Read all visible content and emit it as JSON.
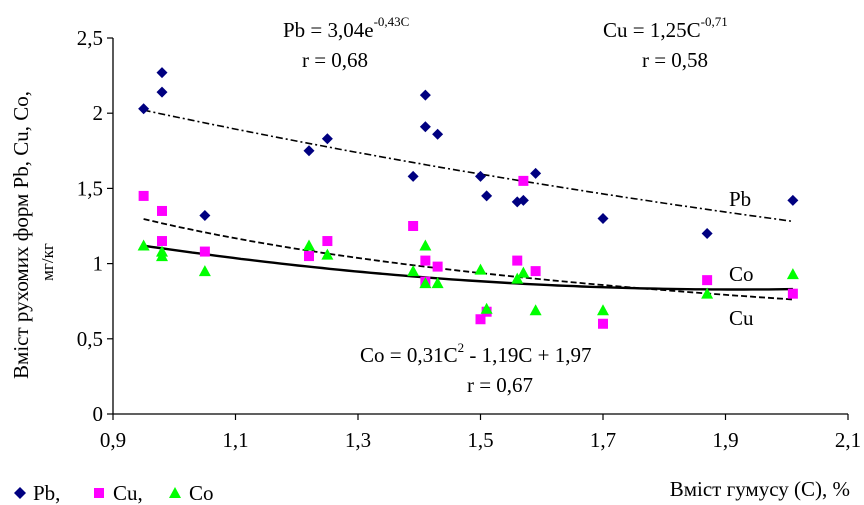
{
  "chart_data": {
    "type": "scatter",
    "xlabel": "Вміст гумусу (С), %",
    "ylabel_line1": "Вміст рухомих форм Pb, Cu, Co,",
    "ylabel_line2": "мг/кг",
    "xlim": [
      0.9,
      2.1
    ],
    "ylim": [
      0,
      2.5
    ],
    "x_ticks": [
      "0,9",
      "1,1",
      "1,3",
      "1,5",
      "1,7",
      "1,9",
      "2,1"
    ],
    "y_ticks": [
      "0",
      "0,5",
      "1",
      "1,5",
      "2",
      "2,5"
    ],
    "grid": false,
    "legend_position": "bottom-left",
    "legend": [
      "Pb,",
      "Cu,",
      "Co"
    ],
    "series": [
      {
        "name": "Pb",
        "marker": "diamond",
        "color": "#000080",
        "points": [
          [
            0.95,
            2.03
          ],
          [
            0.98,
            2.27
          ],
          [
            0.98,
            2.14
          ],
          [
            1.05,
            1.32
          ],
          [
            1.22,
            1.75
          ],
          [
            1.25,
            1.83
          ],
          [
            1.39,
            1.58
          ],
          [
            1.41,
            2.12
          ],
          [
            1.41,
            1.91
          ],
          [
            1.43,
            1.86
          ],
          [
            1.5,
            1.58
          ],
          [
            1.51,
            1.45
          ],
          [
            1.56,
            1.41
          ],
          [
            1.57,
            1.42
          ],
          [
            1.59,
            1.6
          ],
          [
            1.7,
            1.3
          ],
          [
            1.87,
            1.2
          ],
          [
            2.01,
            1.42
          ]
        ]
      },
      {
        "name": "Cu",
        "marker": "square",
        "color": "#ff00ff",
        "points": [
          [
            0.95,
            1.45
          ],
          [
            0.98,
            1.35
          ],
          [
            0.98,
            1.15
          ],
          [
            1.05,
            1.08
          ],
          [
            1.22,
            1.05
          ],
          [
            1.25,
            1.15
          ],
          [
            1.39,
            1.25
          ],
          [
            1.41,
            1.02
          ],
          [
            1.41,
            0.88
          ],
          [
            1.43,
            0.98
          ],
          [
            1.5,
            0.63
          ],
          [
            1.51,
            0.68
          ],
          [
            1.56,
            1.02
          ],
          [
            1.57,
            1.55
          ],
          [
            1.59,
            0.95
          ],
          [
            1.7,
            0.6
          ],
          [
            1.87,
            0.89
          ],
          [
            2.01,
            0.8
          ]
        ]
      },
      {
        "name": "Co",
        "marker": "triangle",
        "color": "#00ff00",
        "points": [
          [
            0.95,
            1.12
          ],
          [
            0.98,
            1.08
          ],
          [
            0.98,
            1.05
          ],
          [
            1.05,
            0.95
          ],
          [
            1.22,
            1.12
          ],
          [
            1.25,
            1.06
          ],
          [
            1.39,
            0.95
          ],
          [
            1.41,
            1.12
          ],
          [
            1.41,
            0.87
          ],
          [
            1.43,
            0.87
          ],
          [
            1.5,
            0.96
          ],
          [
            1.51,
            0.7
          ],
          [
            1.56,
            0.9
          ],
          [
            1.57,
            0.94
          ],
          [
            1.59,
            0.69
          ],
          [
            1.7,
            0.69
          ],
          [
            1.87,
            0.8
          ],
          [
            2.01,
            0.93
          ]
        ]
      }
    ],
    "trendlines": [
      {
        "series": "Pb",
        "label": "Pb",
        "type": "exp",
        "a": 3.04,
        "b": -0.43,
        "x_range": [
          0.95,
          2.01
        ],
        "style": "dash-dot"
      },
      {
        "series": "Cu",
        "label": "Cu",
        "type": "power",
        "a": 1.25,
        "b": -0.71,
        "x_range": [
          0.95,
          2.01
        ],
        "style": "dashed"
      },
      {
        "series": "Co",
        "label": "Co",
        "type": "poly2",
        "c2": 0.31,
        "c1": -1.19,
        "c0": 1.97,
        "x_range": [
          0.95,
          2.01
        ],
        "style": "solid"
      }
    ],
    "annotations": {
      "pb_eq_base": "Pb = 3,04e",
      "pb_eq_exp": "-0,43C",
      "pb_r": "r = 0,68",
      "cu_eq_base": "Cu = 1,25C",
      "cu_eq_exp": "-0,71",
      "cu_r": "r = 0,58",
      "co_eq_a": "Co = 0,31C",
      "co_eq_sup": "2",
      "co_eq_b": " - 1,19C + 1,97",
      "co_r": "r = 0,67"
    }
  }
}
